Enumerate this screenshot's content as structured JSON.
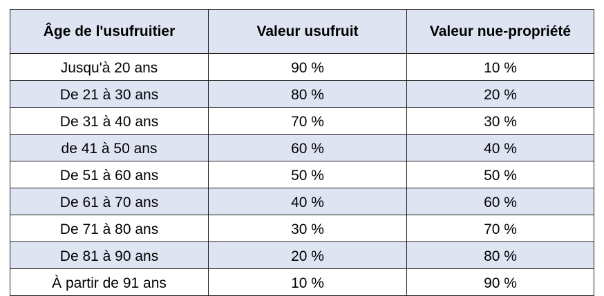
{
  "table": {
    "headers": [
      "Âge de l'usufruitier",
      "Valeur usufruit",
      "Valeur nue-propriété"
    ],
    "rows": [
      [
        "Jusqu'à 20 ans",
        "90 %",
        "10 %"
      ],
      [
        "De 21 à 30 ans",
        "80 %",
        "20 %"
      ],
      [
        "De 31 à 40 ans",
        "70 %",
        "30 %"
      ],
      [
        "de 41 à 50 ans",
        "60 %",
        "40 %"
      ],
      [
        "De 51 à 60 ans",
        "50 %",
        "50 %"
      ],
      [
        "De 61 à 70 ans",
        "40 %",
        "60 %"
      ],
      [
        "De 71 à 80 ans",
        "30 %",
        "70 %"
      ],
      [
        "De 81 à 90 ans",
        "20 %",
        "80 %"
      ],
      [
        "À partir de 91 ans",
        "10 %",
        "90 %"
      ]
    ],
    "colors": {
      "header_bg": "#dfe4f3",
      "stripe_bg": "#dfe4f3",
      "border": "#1a1a1a"
    }
  }
}
